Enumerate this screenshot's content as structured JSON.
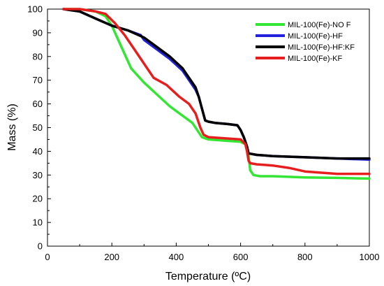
{
  "chart_data": {
    "type": "line",
    "xlabel": "Temperature (ºC)",
    "ylabel": "Mass (%)",
    "xlim": [
      0,
      1000
    ],
    "ylim": [
      0,
      100
    ],
    "xticks": [
      "0",
      "200",
      "400",
      "600",
      "800",
      "1000"
    ],
    "yticks": [
      "0",
      "10",
      "20",
      "30",
      "40",
      "50",
      "60",
      "70",
      "80",
      "90",
      "100"
    ],
    "grid": false,
    "legend_position": "top-right",
    "series": [
      {
        "name": "MIL-100(Fe)-NO F",
        "color": "#33e633",
        "x": [
          50,
          100,
          150,
          180,
          200,
          220,
          240,
          260,
          280,
          300,
          340,
          380,
          420,
          450,
          470,
          480,
          490,
          500,
          550,
          600,
          615,
          625,
          630,
          640,
          660,
          700,
          800,
          900,
          1000
        ],
        "y": [
          100,
          100,
          99,
          97,
          93,
          87,
          81,
          75,
          72,
          69,
          64,
          59,
          55,
          52,
          48,
          46,
          45.5,
          45,
          44.5,
          44,
          43,
          38,
          32,
          30,
          29.5,
          29.5,
          29,
          28.8,
          28.5
        ]
      },
      {
        "name": "MIL-100(Fe)-HF",
        "color": "#2222dd",
        "x": [
          50,
          100,
          150,
          200,
          250,
          290,
          300,
          340,
          380,
          420,
          440,
          460,
          470,
          480,
          490,
          500,
          520,
          560,
          590,
          600,
          610,
          620,
          625,
          630,
          650,
          700,
          800,
          900,
          1000
        ],
        "y": [
          100,
          99,
          96,
          93,
          91,
          89,
          87,
          83,
          79,
          74,
          70,
          66,
          63,
          58,
          53,
          52.5,
          52,
          51.5,
          51,
          49,
          46,
          42,
          39,
          39,
          38.5,
          38,
          37.5,
          37,
          36.5
        ]
      },
      {
        "name": "MIL-100(Fe)-HF:KF",
        "color": "#000000",
        "x": [
          50,
          100,
          150,
          200,
          250,
          300,
          340,
          380,
          420,
          440,
          460,
          470,
          480,
          490,
          500,
          520,
          560,
          590,
          600,
          610,
          620,
          625,
          630,
          650,
          700,
          800,
          900,
          1000
        ],
        "y": [
          100,
          99,
          96,
          93,
          91,
          88,
          84,
          80,
          75,
          71,
          67,
          63,
          58,
          53,
          52.5,
          52,
          51.5,
          51,
          49,
          46,
          42,
          39,
          39,
          38.5,
          38,
          37.5,
          37,
          37
        ]
      },
      {
        "name": "MIL-100(Fe)-KF",
        "color": "#e61e1e",
        "x": [
          50,
          100,
          150,
          180,
          210,
          240,
          270,
          300,
          330,
          370,
          410,
          440,
          460,
          475,
          485,
          500,
          550,
          600,
          615,
          620,
          625,
          630,
          650,
          700,
          750,
          800,
          900,
          1000
        ],
        "y": [
          100,
          100,
          99,
          98,
          94,
          89,
          83,
          77,
          71,
          68,
          63,
          60,
          56,
          50,
          47,
          46,
          45.5,
          45,
          43,
          40,
          36,
          35,
          34.5,
          34,
          33,
          31.5,
          30.5,
          30.5
        ]
      }
    ]
  }
}
